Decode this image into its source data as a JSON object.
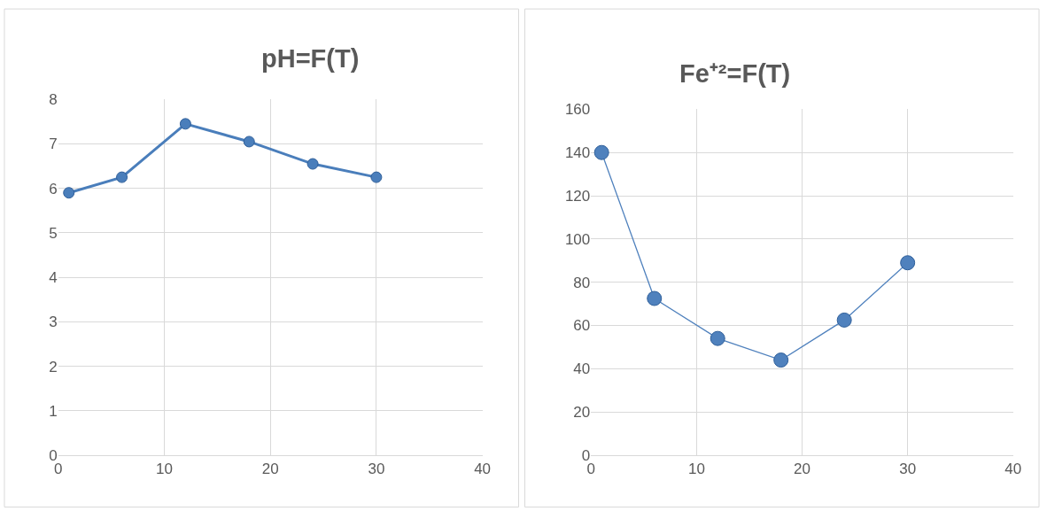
{
  "chart_data": [
    {
      "type": "line",
      "title": "pH=F(T)",
      "x": [
        1,
        6,
        12,
        18,
        24,
        30
      ],
      "series": [
        {
          "color": "#4a7ebb",
          "values": [
            5.9,
            6.25,
            7.45,
            7.05,
            6.55,
            6.25
          ]
        }
      ],
      "xlim": [
        0,
        40
      ],
      "xticks": [
        0,
        10,
        20,
        30,
        40
      ],
      "ylim": [
        0,
        8
      ],
      "yticks": [
        0,
        1,
        2,
        3,
        4,
        5,
        6,
        7,
        8
      ],
      "grid": true,
      "marker": "circle",
      "line_style": "solid"
    },
    {
      "type": "line",
      "title": "Fe⁺²=F(T)",
      "x": [
        1,
        6,
        12,
        18,
        24,
        30
      ],
      "series": [
        {
          "color": "#4f81bd",
          "values": [
            140,
            72.5,
            54,
            44,
            62.5,
            89
          ]
        }
      ],
      "xlim": [
        0,
        40
      ],
      "xticks": [
        0,
        10,
        20,
        30,
        40
      ],
      "ylim": [
        0,
        160
      ],
      "yticks": [
        0,
        20,
        40,
        60,
        80,
        100,
        120,
        140,
        160
      ],
      "grid": true,
      "marker": "circle",
      "line_style": "solid"
    }
  ]
}
